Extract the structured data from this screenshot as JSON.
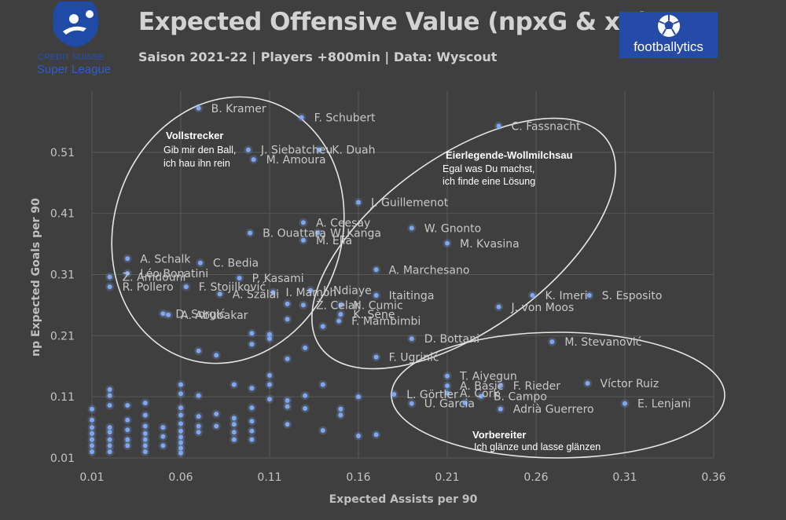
{
  "header": {
    "title": "Expected Offensive Value (npxG & xA)",
    "subtitle": "Saison 2021-22 | Players +800min | Data: Wyscout"
  },
  "logos": {
    "league_line1": "CREDIT SUISSE",
    "league_line2": "Super League",
    "brand": "footballytics"
  },
  "colors": {
    "background": "#3f3f3f",
    "point": "#7ea7f0",
    "grid": "#585858",
    "text": "#c8c8c8"
  },
  "chart_data": {
    "type": "scatter",
    "title": "Expected Offensive Value (npxG & xA)",
    "xlabel": "Expected Assists per 90",
    "ylabel": "np Expected Goals per 90",
    "xlim": [
      0.01,
      0.36
    ],
    "ylim": [
      0.01,
      0.61
    ],
    "xticks": [
      "0.01",
      "0.06",
      "0.11",
      "0.16",
      "0.21",
      "0.26",
      "0.31",
      "0.36"
    ],
    "yticks": [
      "0.01",
      "0.11",
      "0.21",
      "0.31",
      "0.41",
      "0.51"
    ],
    "labeled_points": [
      {
        "name": "B. Kramer",
        "x": 0.07,
        "y": 0.582
      },
      {
        "name": "F. Schubert",
        "x": 0.128,
        "y": 0.567
      },
      {
        "name": "C. Fassnacht",
        "x": 0.239,
        "y": 0.553
      },
      {
        "name": "J. Siebatcheu",
        "x": 0.098,
        "y": 0.514
      },
      {
        "name": "K. Duah",
        "x": 0.138,
        "y": 0.514
      },
      {
        "name": "M. Amoura",
        "x": 0.101,
        "y": 0.498
      },
      {
        "name": "J. Guillemenot",
        "x": 0.16,
        "y": 0.428
      },
      {
        "name": "A. Ceesay",
        "x": 0.129,
        "y": 0.395
      },
      {
        "name": "W. Gnonto",
        "x": 0.19,
        "y": 0.386
      },
      {
        "name": "B. Ouattara",
        "x": 0.099,
        "y": 0.378
      },
      {
        "name": "W. Kanga",
        "x": 0.137,
        "y": 0.378
      },
      {
        "name": "M. Elia",
        "x": 0.129,
        "y": 0.366
      },
      {
        "name": "M. Kvasina",
        "x": 0.21,
        "y": 0.361
      },
      {
        "name": "A. Schalk",
        "x": 0.03,
        "y": 0.336
      },
      {
        "name": "C. Bedia",
        "x": 0.071,
        "y": 0.329
      },
      {
        "name": "A. Marchesano",
        "x": 0.17,
        "y": 0.318
      },
      {
        "name": "Léo Bonatini",
        "x": 0.03,
        "y": 0.312
      },
      {
        "name": "P. Kasami",
        "x": 0.093,
        "y": 0.304
      },
      {
        "name": "Z. Amdouni",
        "x": 0.02,
        "y": 0.306
      },
      {
        "name": "F. Stojilković",
        "x": 0.063,
        "y": 0.29
      },
      {
        "name": "I. Ndiaye",
        "x": 0.133,
        "y": 0.284
      },
      {
        "name": "I. Mamoh",
        "x": 0.112,
        "y": 0.281
      },
      {
        "name": "R. Pollero",
        "x": 0.02,
        "y": 0.29
      },
      {
        "name": "A. Szalai",
        "x": 0.082,
        "y": 0.278
      },
      {
        "name": "Itaitinga",
        "x": 0.17,
        "y": 0.276
      },
      {
        "name": "K. Imeri",
        "x": 0.258,
        "y": 0.276
      },
      {
        "name": "S. Esposito",
        "x": 0.29,
        "y": 0.276
      },
      {
        "name": "Ž. Celar",
        "x": 0.129,
        "y": 0.26
      },
      {
        "name": "N. Cumic",
        "x": 0.15,
        "y": 0.26
      },
      {
        "name": "J. von Moos",
        "x": 0.239,
        "y": 0.257
      },
      {
        "name": "K. Sène",
        "x": 0.15,
        "y": 0.245
      },
      {
        "name": "D. Sorgić",
        "x": 0.05,
        "y": 0.246
      },
      {
        "name": "A. Abubakar",
        "x": 0.053,
        "y": 0.244
      },
      {
        "name": "F. Mambimbi",
        "x": 0.149,
        "y": 0.234
      },
      {
        "name": "D. Bottani",
        "x": 0.19,
        "y": 0.205
      },
      {
        "name": "M. Stevanović",
        "x": 0.269,
        "y": 0.2
      },
      {
        "name": "F. Ugrinić",
        "x": 0.17,
        "y": 0.175
      },
      {
        "name": "T. Aiyegun",
        "x": 0.21,
        "y": 0.144
      },
      {
        "name": "A. Basic",
        "x": 0.21,
        "y": 0.128
      },
      {
        "name": "F. Rieder",
        "x": 0.24,
        "y": 0.128
      },
      {
        "name": "Víctor Ruiz",
        "x": 0.289,
        "y": 0.132
      },
      {
        "name": "A. Cork",
        "x": 0.21,
        "y": 0.116
      },
      {
        "name": "L. Görtler",
        "x": 0.18,
        "y": 0.114
      },
      {
        "name": "B. Campo",
        "x": 0.229,
        "y": 0.111
      },
      {
        "name": "U. Garcia",
        "x": 0.19,
        "y": 0.099
      },
      {
        "name": "E. Lenjani",
        "x": 0.31,
        "y": 0.099
      },
      {
        "name": "Adrià Guerrero",
        "x": 0.24,
        "y": 0.09
      }
    ],
    "unlabeled_points": [
      [
        0.01,
        0.09
      ],
      [
        0.01,
        0.072
      ],
      [
        0.01,
        0.06
      ],
      [
        0.01,
        0.05
      ],
      [
        0.01,
        0.04
      ],
      [
        0.01,
        0.03
      ],
      [
        0.01,
        0.02
      ],
      [
        0.02,
        0.122
      ],
      [
        0.02,
        0.112
      ],
      [
        0.02,
        0.096
      ],
      [
        0.02,
        0.06
      ],
      [
        0.02,
        0.052
      ],
      [
        0.02,
        0.04
      ],
      [
        0.02,
        0.03
      ],
      [
        0.02,
        0.02
      ],
      [
        0.03,
        0.096
      ],
      [
        0.03,
        0.072
      ],
      [
        0.03,
        0.056
      ],
      [
        0.03,
        0.04
      ],
      [
        0.03,
        0.03
      ],
      [
        0.04,
        0.1
      ],
      [
        0.04,
        0.08
      ],
      [
        0.04,
        0.062
      ],
      [
        0.04,
        0.05
      ],
      [
        0.04,
        0.04
      ],
      [
        0.04,
        0.03
      ],
      [
        0.04,
        0.02
      ],
      [
        0.05,
        0.06
      ],
      [
        0.05,
        0.045
      ],
      [
        0.05,
        0.03
      ],
      [
        0.06,
        0.13
      ],
      [
        0.06,
        0.115
      ],
      [
        0.06,
        0.092
      ],
      [
        0.06,
        0.08
      ],
      [
        0.06,
        0.066
      ],
      [
        0.06,
        0.054
      ],
      [
        0.06,
        0.044
      ],
      [
        0.06,
        0.035
      ],
      [
        0.06,
        0.026
      ],
      [
        0.06,
        0.018
      ],
      [
        0.07,
        0.112
      ],
      [
        0.07,
        0.078
      ],
      [
        0.07,
        0.062
      ],
      [
        0.07,
        0.052
      ],
      [
        0.07,
        0.185
      ],
      [
        0.08,
        0.082
      ],
      [
        0.08,
        0.062
      ],
      [
        0.08,
        0.178
      ],
      [
        0.09,
        0.13
      ],
      [
        0.09,
        0.075
      ],
      [
        0.09,
        0.065
      ],
      [
        0.09,
        0.052
      ],
      [
        0.09,
        0.04
      ],
      [
        0.1,
        0.124
      ],
      [
        0.1,
        0.092
      ],
      [
        0.1,
        0.07
      ],
      [
        0.1,
        0.054
      ],
      [
        0.1,
        0.04
      ],
      [
        0.1,
        0.214
      ],
      [
        0.1,
        0.196
      ],
      [
        0.11,
        0.13
      ],
      [
        0.11,
        0.145
      ],
      [
        0.11,
        0.106
      ],
      [
        0.11,
        0.212
      ],
      [
        0.11,
        0.205
      ],
      [
        0.12,
        0.104
      ],
      [
        0.12,
        0.094
      ],
      [
        0.12,
        0.065
      ],
      [
        0.12,
        0.262
      ],
      [
        0.12,
        0.237
      ],
      [
        0.12,
        0.172
      ],
      [
        0.13,
        0.112
      ],
      [
        0.13,
        0.091
      ],
      [
        0.13,
        0.19
      ],
      [
        0.14,
        0.13
      ],
      [
        0.14,
        0.055
      ],
      [
        0.14,
        0.225
      ],
      [
        0.15,
        0.09
      ],
      [
        0.15,
        0.08
      ],
      [
        0.16,
        0.11
      ],
      [
        0.16,
        0.046
      ],
      [
        0.17,
        0.048
      ],
      [
        0.22,
        0.1
      ]
    ]
  },
  "zones": [
    {
      "title": "Vollstrecker",
      "line1": "Gib mir den Ball,",
      "line2": "ich hau ihn rein"
    },
    {
      "title": "Eierlegende-Wollmilchsau",
      "line1": "Egal was Du machst,",
      "line2": "ich finde eine Lösung"
    },
    {
      "title": "Vorbereiter",
      "line1": "Ich glänze und lasse glänzen",
      "line2": ""
    }
  ]
}
